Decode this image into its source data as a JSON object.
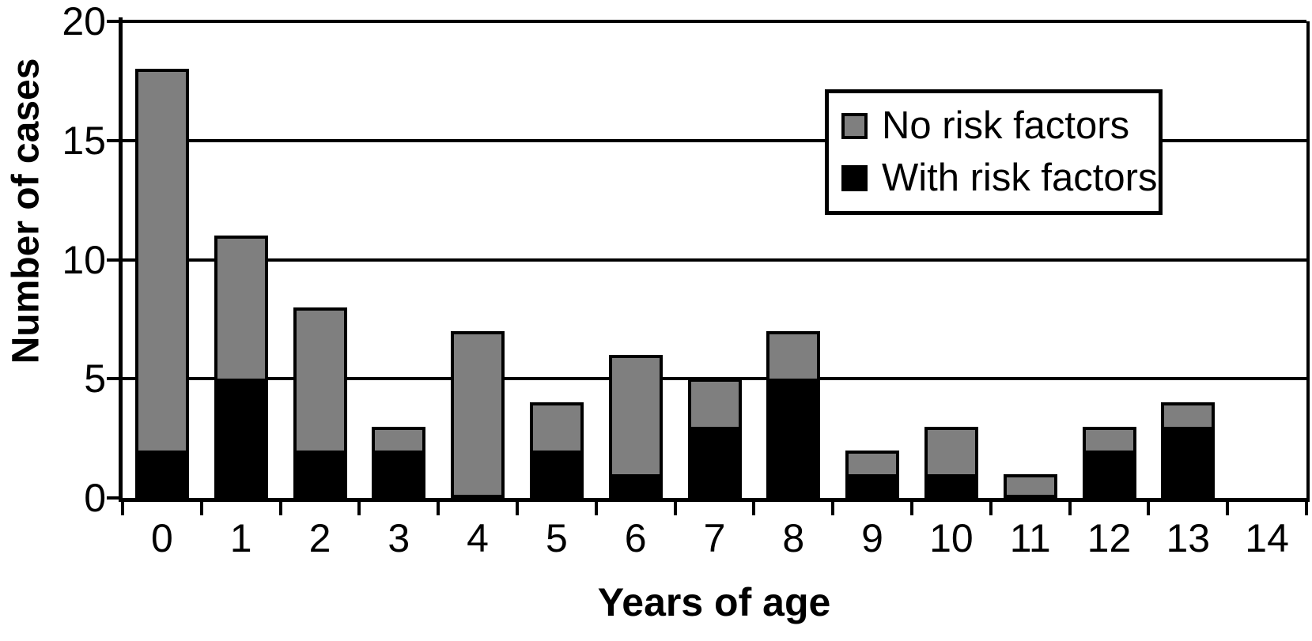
{
  "chart_data": {
    "type": "bar",
    "stacked": true,
    "title": "",
    "xlabel": "Years of age",
    "ylabel": "Number of cases",
    "categories": [
      "0",
      "1",
      "2",
      "3",
      "4",
      "5",
      "6",
      "7",
      "8",
      "9",
      "10",
      "11",
      "12",
      "13",
      "14"
    ],
    "series": [
      {
        "name": "With risk factors",
        "color": "#000000",
        "values": [
          2,
          5,
          2,
          2,
          0,
          2,
          1,
          3,
          5,
          1,
          1,
          0,
          2,
          3,
          0
        ]
      },
      {
        "name": "No risk factors",
        "color": "#7f7f7f",
        "values": [
          16,
          6,
          6,
          1,
          7,
          2,
          5,
          2,
          2,
          1,
          2,
          1,
          1,
          1,
          0
        ]
      }
    ],
    "totals": [
      18,
      11,
      8,
      3,
      7,
      4,
      6,
      5,
      7,
      2,
      3,
      1,
      3,
      4,
      0
    ],
    "ylim": [
      0,
      20
    ],
    "yticks": [
      0,
      5,
      10,
      15,
      20
    ],
    "grid": "horizontal",
    "legend_position": "top-right",
    "legend": [
      {
        "label": "No risk factors",
        "swatch_color": "#7f7f7f"
      },
      {
        "label": "With risk factors",
        "swatch_color": "#000000"
      }
    ],
    "colors": {
      "bar_outline": "#000000",
      "gridline": "#000000",
      "background": "#ffffff"
    }
  }
}
